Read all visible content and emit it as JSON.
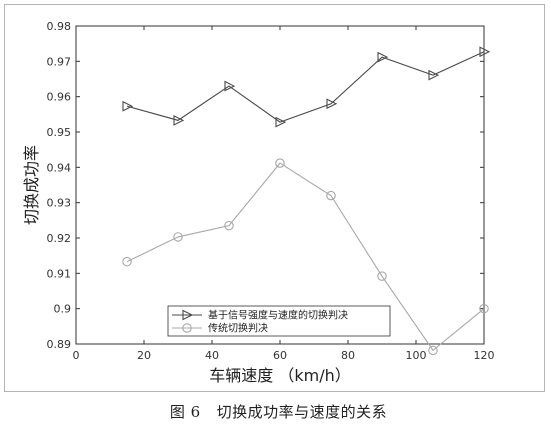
{
  "caption": {
    "label": "图 6",
    "text": "切换成功率与速度的关系"
  },
  "chart_data": {
    "type": "line",
    "xlabel": "车辆速度 （km/h）",
    "ylabel": "切换成功率",
    "xlim": [
      0,
      120
    ],
    "ylim": [
      0.89,
      0.98
    ],
    "xticks": [
      0,
      20,
      40,
      60,
      80,
      100,
      120
    ],
    "yticks": [
      0.89,
      0.9,
      0.91,
      0.92,
      0.93,
      0.94,
      0.95,
      0.96,
      0.97,
      0.98
    ],
    "ytick_labels": [
      "0.89",
      "0.9",
      "0.91",
      "0.92",
      "0.93",
      "0.94",
      "0.95",
      "0.96",
      "0.97",
      "0.98"
    ],
    "grid": false,
    "legend_position": "bottom-left",
    "series": [
      {
        "name": "基于信号强度与速度的切换判决",
        "marker": "triangle-right",
        "color": "#4a4a4a",
        "x": [
          15,
          30,
          45,
          60,
          75,
          90,
          105,
          120
        ],
        "y": [
          0.9573,
          0.9533,
          0.963,
          0.9528,
          0.958,
          0.9712,
          0.9661,
          0.9727
        ]
      },
      {
        "name": "传统切换判决",
        "marker": "circle",
        "color": "#a8a8a8",
        "x": [
          15,
          30,
          45,
          60,
          75,
          90,
          105,
          120
        ],
        "y": [
          0.9133,
          0.9203,
          0.9235,
          0.9412,
          0.932,
          0.9092,
          0.8882,
          0.9
        ]
      }
    ]
  }
}
